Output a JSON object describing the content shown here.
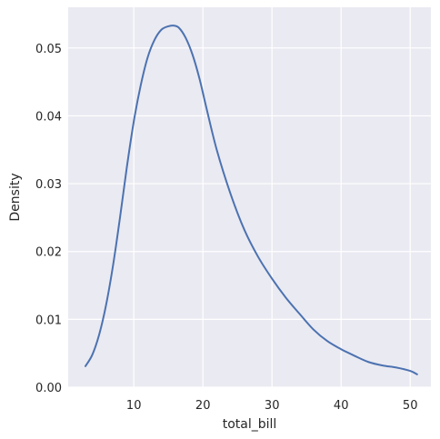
{
  "chart_data": {
    "type": "line",
    "title": "",
    "xlabel": "total_bill",
    "ylabel": "Density",
    "xlim": [
      0.5,
      53.0
    ],
    "ylim": [
      0,
      0.056
    ],
    "grid": true,
    "background_color": "#eaeaf2",
    "grid_color": "#ffffff",
    "xticks": [
      10,
      20,
      30,
      40,
      50
    ],
    "xtick_labels": [
      "10",
      "20",
      "30",
      "40",
      "50"
    ],
    "yticks": [
      0,
      0.01,
      0.02,
      0.03,
      0.04,
      0.05
    ],
    "ytick_labels": [
      "0.00",
      "0.01",
      "0.02",
      "0.03",
      "0.04",
      "0.05"
    ],
    "series": [
      {
        "color": "#4c72b0",
        "x": [
          3.0,
          4.0,
          5.0,
          6.0,
          7.0,
          8.0,
          9.0,
          10.0,
          11.0,
          12.0,
          13.0,
          14.0,
          15.0,
          15.7,
          16.5,
          17.5,
          18.5,
          19.5,
          20.5,
          22.0,
          24.0,
          26.0,
          28.0,
          30.0,
          32.0,
          34.0,
          36.0,
          38.0,
          40.0,
          42.0,
          44.0,
          46.0,
          48.0,
          50.0,
          51.0
        ],
        "y": [
          0.0031,
          0.0048,
          0.0078,
          0.0122,
          0.018,
          0.025,
          0.0325,
          0.0392,
          0.0445,
          0.0486,
          0.0512,
          0.0527,
          0.0532,
          0.0533,
          0.053,
          0.0515,
          0.049,
          0.0455,
          0.0412,
          0.035,
          0.0285,
          0.0232,
          0.0192,
          0.016,
          0.0132,
          0.0108,
          0.0085,
          0.0068,
          0.0056,
          0.0046,
          0.0037,
          0.0032,
          0.0029,
          0.0024,
          0.0019
        ]
      }
    ]
  }
}
